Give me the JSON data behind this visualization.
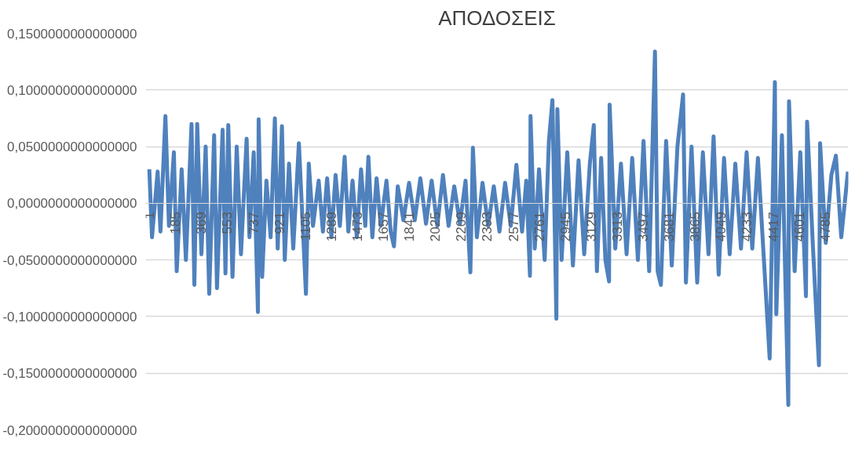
{
  "chart_data": {
    "type": "line",
    "title": "ΑΠΟΔΟΣΕΙΣ",
    "color": "#4f81bd",
    "grid": "y",
    "x": [
      1,
      20,
      60,
      80,
      115,
      140,
      175,
      195,
      230,
      260,
      300,
      320,
      340,
      370,
      400,
      425,
      460,
      480,
      520,
      540,
      560,
      590,
      620,
      650,
      690,
      710,
      740,
      770,
      775,
      800,
      830,
      860,
      890,
      910,
      940,
      960,
      990,
      1020,
      1060,
      1110,
      1130,
      1160,
      1200,
      1230,
      1260,
      1290,
      1320,
      1350,
      1384,
      1410,
      1440,
      1470,
      1500,
      1530,
      1552,
      1580,
      1610,
      1640,
      1680,
      1710,
      1733,
      1760,
      1800,
      1840,
      1880,
      1920,
      1960,
      2000,
      2040,
      2080,
      2120,
      2160,
      2200,
      2240,
      2274,
      2292,
      2320,
      2360,
      2400,
      2440,
      2480,
      2520,
      2560,
      2600,
      2640,
      2670,
      2696,
      2700,
      2730,
      2760,
      2800,
      2830,
      2855,
      2883,
      2890,
      2920,
      2960,
      3000,
      3040,
      3080,
      3120,
      3148,
      3170,
      3200,
      3230,
      3256,
      3260,
      3300,
      3340,
      3380,
      3420,
      3460,
      3500,
      3540,
      3581,
      3600,
      3623,
      3660,
      3700,
      3740,
      3780,
      3800,
      3840,
      3880,
      3920,
      3960,
      3996,
      4032,
      4070,
      4110,
      4150,
      4190,
      4230,
      4270,
      4310,
      4350,
      4393,
      4430,
      4440,
      4480,
      4525,
      4530,
      4570,
      4610,
      4650,
      4658,
      4700,
      4742,
      4750,
      4790,
      4830,
      4862,
      4900,
      4947
    ],
    "values": [
      0.03,
      -0.03,
      0.028,
      -0.025,
      0.077,
      -0.02,
      0.045,
      -0.06,
      0.03,
      -0.05,
      0.07,
      -0.072,
      0.07,
      -0.045,
      0.05,
      -0.08,
      0.06,
      -0.075,
      0.065,
      -0.062,
      0.069,
      -0.065,
      0.05,
      -0.045,
      0.057,
      -0.03,
      0.045,
      -0.096,
      0.074,
      -0.065,
      0.02,
      -0.03,
      0.075,
      -0.04,
      0.068,
      -0.05,
      0.035,
      -0.04,
      0.053,
      -0.08,
      0.035,
      -0.02,
      0.02,
      -0.025,
      0.022,
      -0.03,
      0.025,
      -0.02,
      0.041,
      -0.025,
      0.02,
      -0.03,
      0.03,
      -0.02,
      0.041,
      -0.03,
      0.022,
      -0.02,
      0.02,
      -0.025,
      -0.038,
      0.015,
      -0.015,
      0.018,
      -0.015,
      0.022,
      -0.018,
      0.02,
      -0.02,
      0.025,
      -0.02,
      0.015,
      -0.018,
      0.02,
      -0.061,
      0.049,
      -0.03,
      0.018,
      -0.02,
      0.015,
      -0.025,
      0.018,
      -0.02,
      0.034,
      -0.025,
      0.02,
      -0.064,
      0.077,
      -0.04,
      0.03,
      -0.05,
      0.055,
      0.091,
      -0.102,
      0.083,
      -0.05,
      0.045,
      -0.055,
      0.038,
      -0.045,
      0.035,
      0.069,
      -0.06,
      0.04,
      -0.05,
      -0.069,
      0.087,
      -0.04,
      0.035,
      -0.045,
      0.04,
      -0.05,
      0.055,
      -0.06,
      0.134,
      -0.06,
      -0.072,
      0.055,
      -0.055,
      0.05,
      0.096,
      -0.07,
      0.05,
      -0.07,
      0.045,
      -0.045,
      0.059,
      -0.063,
      0.04,
      -0.045,
      0.035,
      -0.04,
      0.045,
      -0.04,
      0.04,
      -0.045,
      -0.137,
      0.107,
      -0.098,
      0.06,
      -0.178,
      0.09,
      -0.06,
      0.045,
      -0.082,
      0.072,
      -0.04,
      -0.143,
      0.053,
      -0.035,
      0.025,
      0.042,
      -0.03,
      0.028
    ],
    "xlim": [
      -25,
      4950
    ],
    "ylim": [
      -0.2,
      0.15
    ],
    "xticks": [
      1,
      185,
      369,
      553,
      737,
      921,
      1105,
      1289,
      1473,
      1657,
      1841,
      2025,
      2209,
      2393,
      2577,
      2761,
      2945,
      3129,
      3313,
      3497,
      3681,
      3865,
      4049,
      4233,
      4417,
      4601,
      4785
    ],
    "yticks": [
      {
        "value": -0.2,
        "label": "-0,2000000000000000"
      },
      {
        "value": -0.15,
        "label": "-0,1500000000000000"
      },
      {
        "value": -0.1,
        "label": "-0,1000000000000000"
      },
      {
        "value": -0.05,
        "label": "-0,0500000000000000"
      },
      {
        "value": 0,
        "label": "0,0000000000000000"
      },
      {
        "value": 0.05,
        "label": "0,0500000000000000"
      },
      {
        "value": 0.1,
        "label": "0,1000000000000000"
      },
      {
        "value": 0.15,
        "label": "0,1500000000000000"
      }
    ]
  }
}
